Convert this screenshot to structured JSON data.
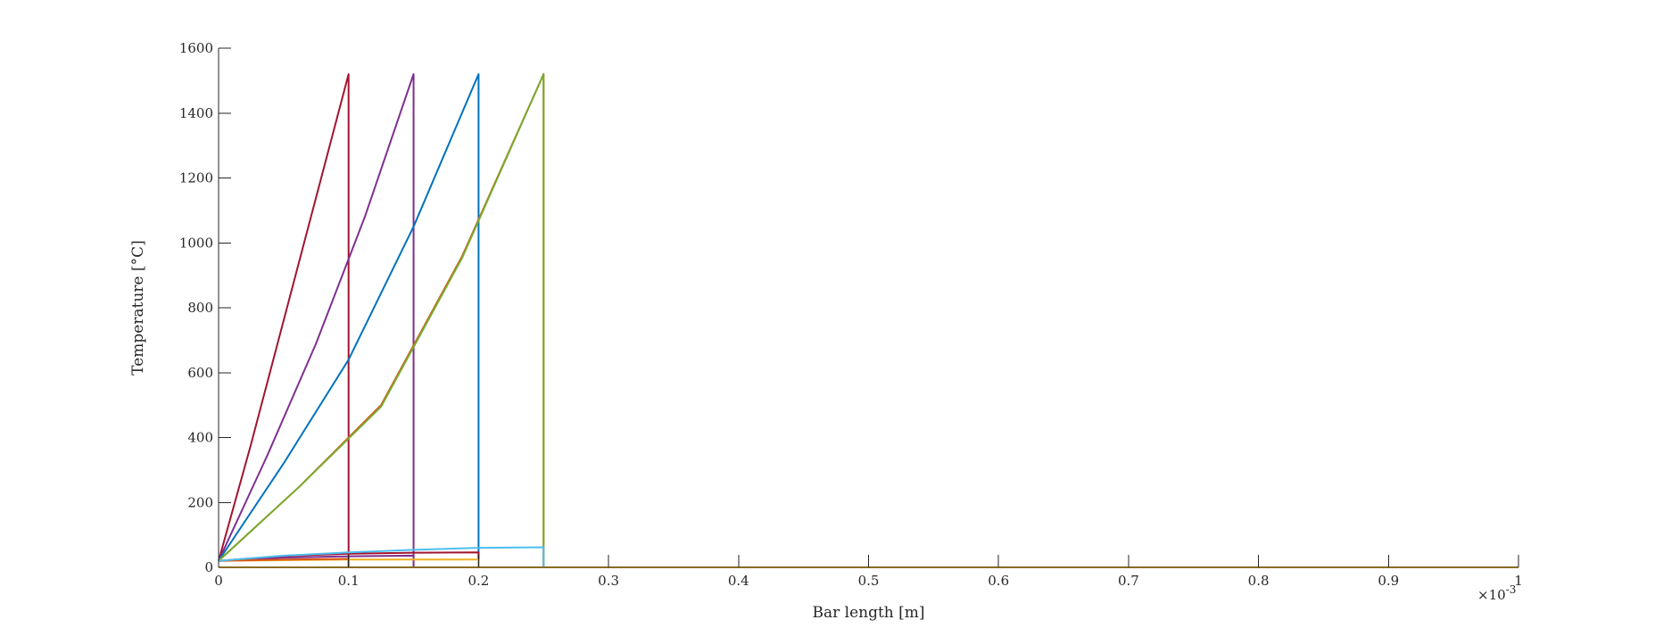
{
  "chart_data": {
    "type": "line",
    "xlabel": "Bar length [m]",
    "ylabel": "Temperature [°C]",
    "x_exponent_label": "×10",
    "x_exponent_power": "-3",
    "xlim": [
      0,
      1
    ],
    "ylim": [
      0,
      1600
    ],
    "xticks": [
      "0",
      "0.1",
      "0.2",
      "0.3",
      "0.4",
      "0.5",
      "0.6",
      "0.7",
      "0.8",
      "0.9",
      "1"
    ],
    "yticks": [
      "0",
      "200",
      "400",
      "600",
      "800",
      "1000",
      "1200",
      "1400",
      "1600"
    ],
    "grid": false,
    "colors": {
      "axis": "#262626",
      "dark_red": "#A2142F",
      "purple": "#7E2F8E",
      "blue": "#0072BD",
      "green": "#77AC30",
      "orange": "#D95319",
      "yellow": "#EDB120",
      "light_blue": "#4DBEEE"
    },
    "series": [
      {
        "color": "#A2142F",
        "x": [
          0,
          0.025,
          0.05,
          0.075,
          0.1,
          0.1,
          1
        ],
        "y": [
          20,
          380,
          760,
          1140,
          1520,
          0,
          0
        ]
      },
      {
        "color": "#7E2F8E",
        "x": [
          0,
          0.0375,
          0.075,
          0.1125,
          0.15,
          0.15,
          1
        ],
        "y": [
          20,
          345,
          690,
          1080,
          1520,
          0,
          0
        ]
      },
      {
        "color": "#0072BD",
        "x": [
          0,
          0.05,
          0.1,
          0.15,
          0.2,
          0.2,
          1
        ],
        "y": [
          20,
          320,
          640,
          1050,
          1520,
          0,
          0
        ]
      },
      {
        "color": "#D95319",
        "x": [
          0,
          0.0625,
          0.125,
          0.1875,
          0.25,
          0.25,
          1
        ],
        "y": [
          20,
          250,
          500,
          960,
          1520,
          0,
          0
        ]
      },
      {
        "color": "#77AC30",
        "x": [
          0,
          0.0625,
          0.125,
          0.1875,
          0.25,
          0.25,
          1
        ],
        "y": [
          20,
          250,
          495,
          955,
          1520,
          0,
          0
        ]
      },
      {
        "color": "#A2142F",
        "x": [
          0,
          0.05,
          0.1,
          0.15,
          0.2,
          0.2
        ],
        "y": [
          20,
          35,
          42,
          45,
          46,
          0
        ]
      },
      {
        "color": "#7E2F8E",
        "x": [
          0,
          0.05,
          0.1,
          0.15,
          0.15
        ],
        "y": [
          20,
          30,
          34,
          36,
          0
        ]
      },
      {
        "color": "#EDB120",
        "x": [
          0,
          0.05,
          0.1,
          0.15,
          0.2,
          0.2
        ],
        "y": [
          20,
          22,
          24,
          24,
          24,
          0
        ]
      },
      {
        "color": "#D95319",
        "x": [
          0,
          0.025,
          0.05,
          0.075,
          0.1,
          0.1
        ],
        "y": [
          20,
          22,
          24,
          25,
          26,
          0
        ]
      },
      {
        "color": "#4DBEEE",
        "x": [
          0,
          0.05,
          0.1,
          0.15,
          0.2,
          0.25,
          0.25,
          1
        ],
        "y": [
          20,
          36,
          46,
          54,
          60,
          62,
          0,
          0
        ]
      },
      {
        "color": "#EDB120",
        "x": [
          0,
          1
        ],
        "y": [
          0,
          0
        ]
      }
    ]
  }
}
